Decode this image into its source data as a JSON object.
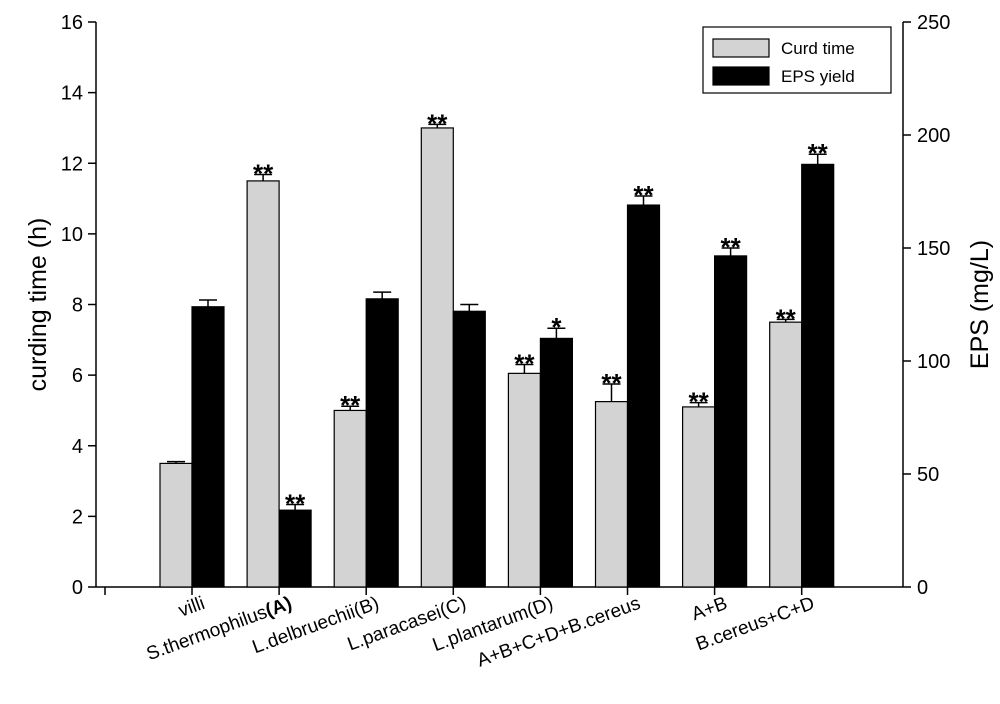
{
  "chart_data": {
    "type": "bar",
    "categories": [
      "villi",
      "S.thermophilus",
      "L.delbruechii(B)",
      "L.paracasei(C)",
      "L.plantarum(D)",
      "A+B+C+D+B.cereus",
      "A+B",
      "B.cereus+C+D"
    ],
    "category_suffix_bold": [
      "",
      "(A)",
      "",
      "",
      "",
      "",
      "",
      ""
    ],
    "series": [
      {
        "name": "Curd time",
        "axis": "left",
        "color": "#d3d3d3",
        "values": [
          3.5,
          11.5,
          5.0,
          13.0,
          6.05,
          5.25,
          5.1,
          7.5
        ],
        "errors": [
          0.05,
          0.18,
          0.12,
          0.1,
          0.25,
          0.5,
          0.12,
          0.08
        ],
        "significance": [
          "",
          "**",
          "**",
          "**",
          "**",
          "**",
          "**",
          "**"
        ]
      },
      {
        "name": "EPS yield",
        "axis": "right",
        "color": "#000000",
        "values": [
          124,
          34,
          127.5,
          122,
          110,
          169,
          146.5,
          187
        ],
        "errors": [
          3,
          2.5,
          3,
          3,
          4.5,
          4,
          3.5,
          4.5
        ],
        "significance": [
          "",
          "**",
          "",
          "",
          "*",
          "**",
          "**",
          "**"
        ]
      }
    ],
    "ylabel": "curding time (h)",
    "ylim": [
      0,
      16
    ],
    "yticks": [
      "0",
      "2",
      "4",
      "6",
      "8",
      "10",
      "12",
      "14",
      "16"
    ],
    "y2label": "EPS (mg/L)",
    "y2lim": [
      0,
      250
    ],
    "y2ticks": [
      "0",
      "50",
      "100",
      "150",
      "200",
      "250"
    ],
    "grid": false,
    "legend_position": "top-right"
  }
}
